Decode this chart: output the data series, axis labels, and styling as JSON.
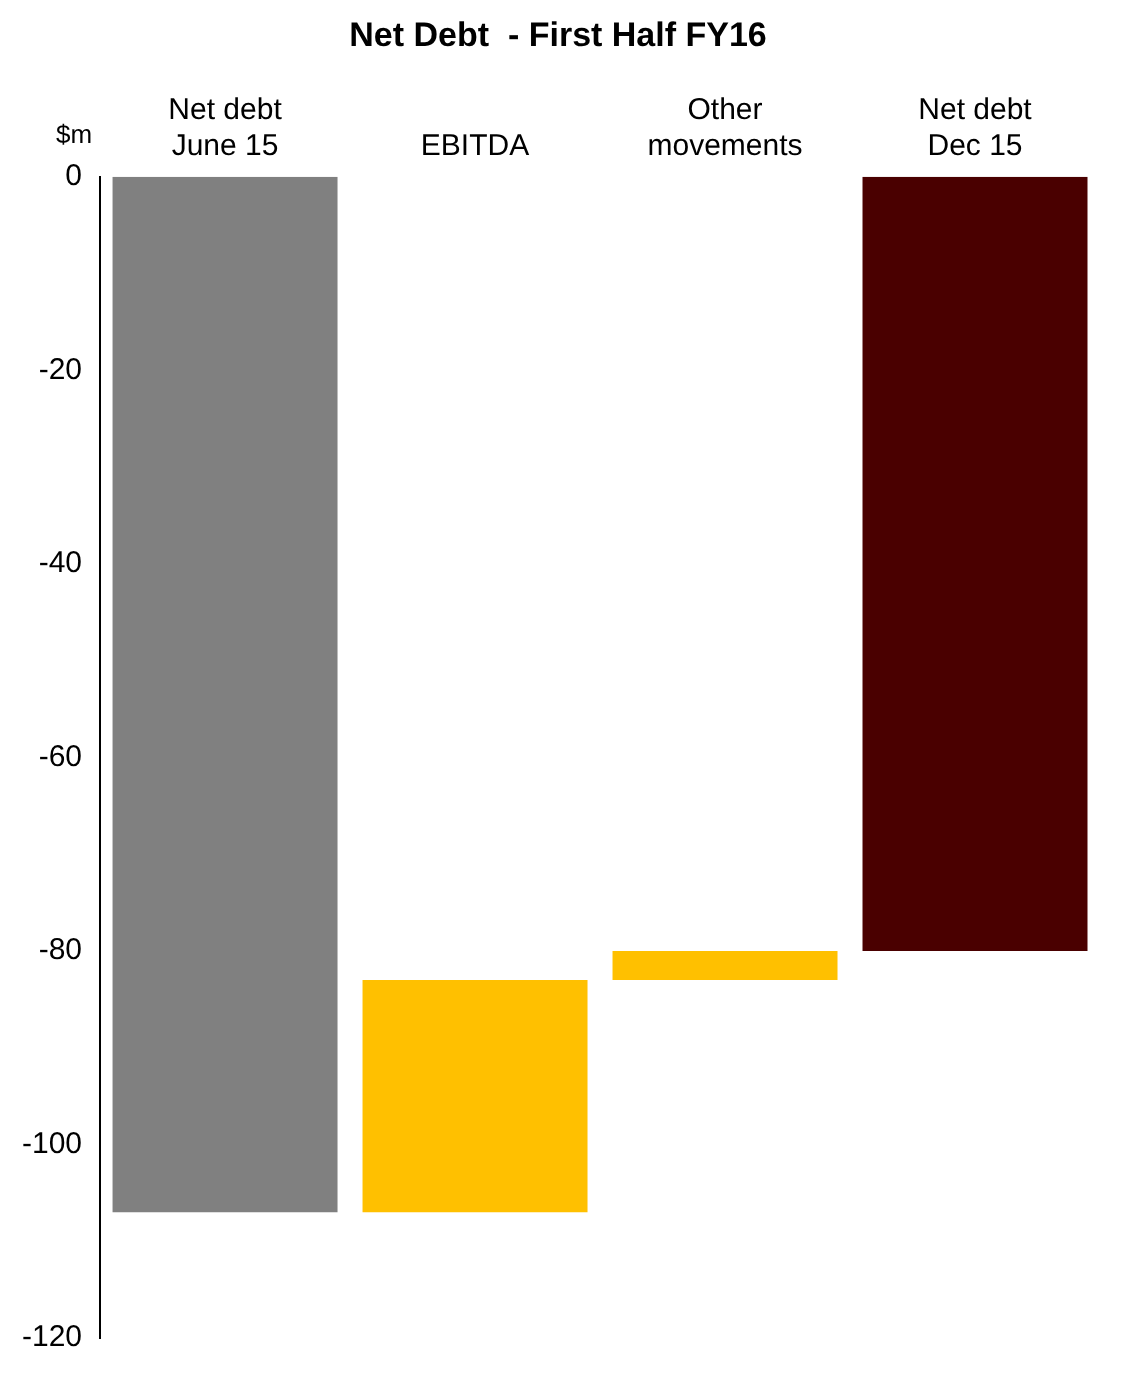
{
  "chart_data": {
    "type": "bar",
    "title": "Net Debt  - First Half FY16",
    "ylabel": "$m",
    "categories": [
      "Net debt June 15",
      "EBITDA",
      "Other movements",
      "Net debt Dec  15"
    ],
    "values": [
      -107,
      24,
      3,
      -80
    ],
    "base": [
      0,
      -107,
      -83,
      0
    ],
    "colors": [
      "#808080",
      "#ffc000",
      "#ffc000",
      "#4a0000"
    ],
    "ylim": [
      -120,
      0
    ],
    "yticks": [
      -120,
      -100,
      -80,
      -60,
      -40,
      -20,
      0
    ],
    "grid": false,
    "legend": false
  }
}
